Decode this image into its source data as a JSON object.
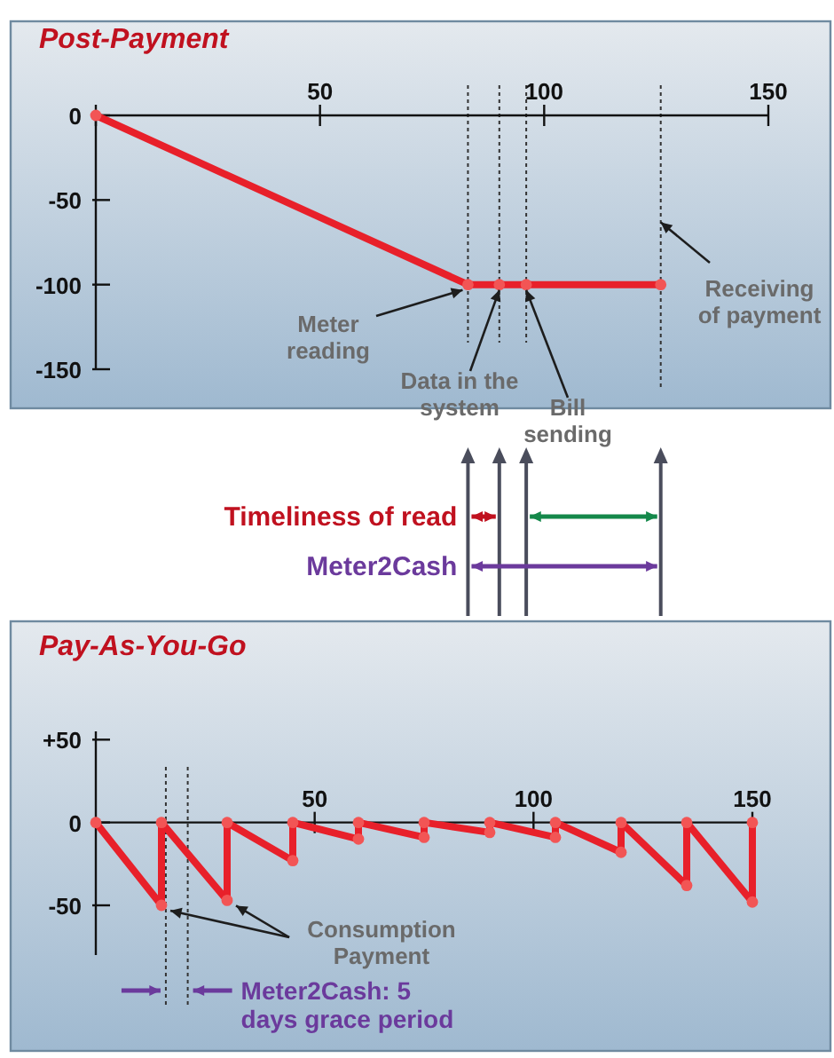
{
  "chart_data": [
    {
      "type": "line",
      "title": "Post-Payment",
      "x": [
        0,
        83,
        90,
        96,
        126
      ],
      "series": [
        {
          "color": "#e8202a",
          "values": [
            0,
            -100,
            -100,
            -100,
            -100
          ]
        }
      ],
      "xlim": [
        0,
        150
      ],
      "xticks": [
        {
          "value": 0,
          "label": null
        },
        50,
        100,
        150
      ],
      "ylim": [
        -150,
        0
      ],
      "yticks": [
        0,
        -50,
        -100,
        -150
      ],
      "marker": "circle",
      "ref_lines": [
        {
          "axis": "x",
          "value": 83,
          "line_style": "dotted",
          "color": "#333333"
        },
        {
          "axis": "x",
          "value": 90,
          "line_style": "dotted",
          "color": "#333333"
        },
        {
          "axis": "x",
          "value": 96,
          "line_style": "dotted",
          "color": "#333333"
        },
        {
          "axis": "x",
          "value": 126,
          "line_style": "dotted",
          "color": "#333333"
        }
      ],
      "annotations": [
        {
          "text": "Meter reading",
          "x": 83,
          "y": -100
        },
        {
          "text": "Data in the system",
          "x": 90,
          "y": -100
        },
        {
          "text": "Bill sending",
          "x": 96,
          "y": -100
        },
        {
          "text": "Receiving of payment",
          "x": 126,
          "y": -60
        },
        "Timeliness of read",
        "Meter2Cash"
      ]
    },
    {
      "type": "line",
      "title": "Pay-As-You-Go",
      "x": [
        0,
        15,
        15,
        30,
        30,
        45,
        45,
        60,
        60,
        75,
        75,
        90,
        90,
        105,
        105,
        120,
        120,
        135,
        135,
        150,
        150
      ],
      "series": [
        {
          "color": "#e8202a",
          "values": [
            0,
            -50,
            0,
            -47,
            0,
            -23,
            0,
            -10,
            0,
            -9,
            0,
            -6,
            0,
            -9,
            0,
            -18,
            0,
            -38,
            0,
            -48,
            0
          ]
        }
      ],
      "xlim": [
        0,
        150
      ],
      "xticks": [
        50,
        100,
        150
      ],
      "ylim": [
        -80,
        55
      ],
      "yticks": [
        {
          "value": 50,
          "label": "+50"
        },
        0,
        -50
      ],
      "marker": "circle",
      "ref_lines": [
        {
          "axis": "x",
          "value": 16,
          "line_style": "dotted",
          "color": "#333333"
        },
        {
          "axis": "x",
          "value": 21,
          "line_style": "dotted",
          "color": "#333333"
        }
      ],
      "annotations": [
        {
          "text": "Consumption Payment",
          "x": 15,
          "y": -50
        },
        "Meter2Cash: 5 days grace period"
      ]
    }
  ]
}
